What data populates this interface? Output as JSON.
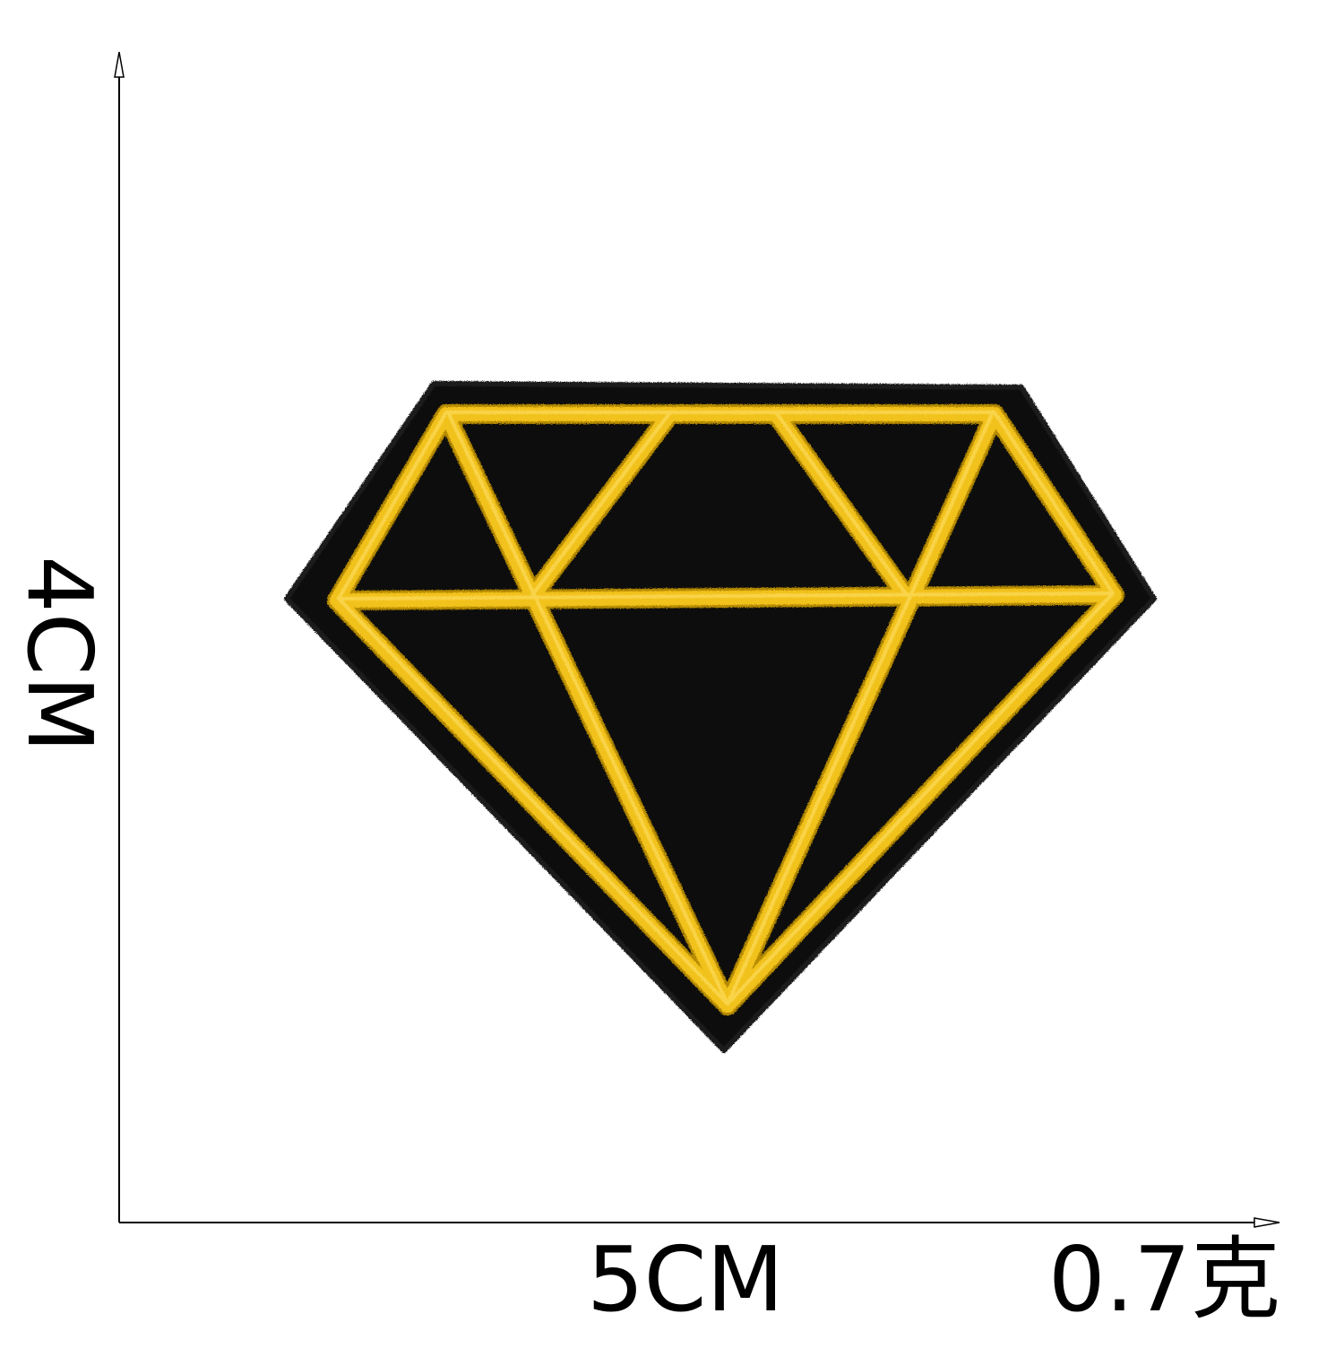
{
  "dimensions": {
    "height_label": "4CM",
    "width_label": "5CM",
    "weight_label": "0.7克"
  },
  "patch": {
    "shape": "diamond-gem",
    "base_color": "#0a0a0a",
    "stitch_color": "#f2c21b",
    "stitch_shadow_color": "#b58a00"
  },
  "measure_lines": {
    "color": "#000000"
  }
}
